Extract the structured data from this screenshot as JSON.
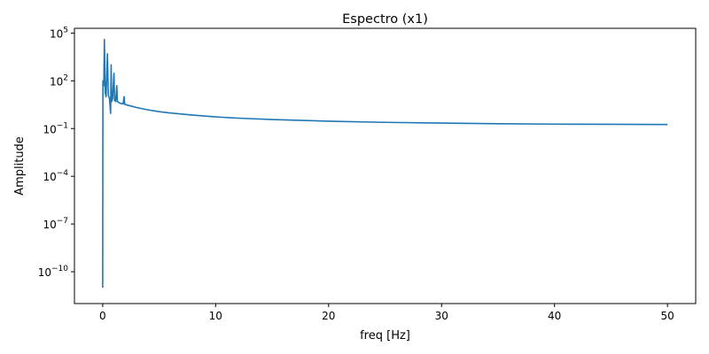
{
  "chart_data": {
    "type": "line",
    "title": "Espectro (x1)",
    "xlabel": "freq [Hz]",
    "ylabel": "Amplitude",
    "xlim": [
      -2.5,
      52.5
    ],
    "ylim_exponent": [
      -12,
      5.3
    ],
    "y_scale": "log",
    "grid": false,
    "x_ticks": [
      0,
      10,
      20,
      30,
      40,
      50
    ],
    "y_ticks_exponent": [
      -10,
      -7,
      -4,
      -1,
      2,
      5
    ],
    "line_color": "#1f77b4",
    "series": [
      {
        "name": "",
        "points": [
          [
            0.0,
            1e-11
          ],
          [
            0.02,
            100.0
          ],
          [
            0.1,
            50.0
          ],
          [
            0.15,
            40000.0
          ],
          [
            0.22,
            20.0
          ],
          [
            0.3,
            10.0
          ],
          [
            0.42,
            5000.0
          ],
          [
            0.5,
            12.0
          ],
          [
            0.6,
            8.0
          ],
          [
            0.7,
            0.9
          ],
          [
            0.75,
            1000.0
          ],
          [
            0.8,
            5.0
          ],
          [
            0.88,
            8.0
          ],
          [
            1.0,
            300.0
          ],
          [
            1.05,
            6.0
          ],
          [
            1.15,
            5.0
          ],
          [
            1.25,
            50.0
          ],
          [
            1.3,
            5.0
          ],
          [
            1.5,
            4.0
          ],
          [
            1.8,
            3.5
          ],
          [
            1.9,
            10.0
          ],
          [
            1.95,
            3.3
          ],
          [
            2.5,
            2.6
          ],
          [
            3.0,
            2.1
          ],
          [
            4.0,
            1.5
          ],
          [
            5.0,
            1.15
          ],
          [
            6.0,
            0.95
          ],
          [
            8.0,
            0.7
          ],
          [
            10.0,
            0.54
          ],
          [
            12.0,
            0.45
          ],
          [
            15.0,
            0.37
          ],
          [
            20.0,
            0.29
          ],
          [
            25.0,
            0.245
          ],
          [
            30.0,
            0.22
          ],
          [
            35.0,
            0.2
          ],
          [
            40.0,
            0.19
          ],
          [
            45.0,
            0.185
          ],
          [
            50.0,
            0.18
          ]
        ]
      }
    ]
  }
}
